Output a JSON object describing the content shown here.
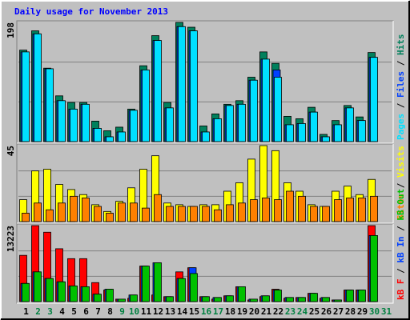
{
  "title": "Daily usage for November 2013",
  "chart_data": [
    {
      "type": "bar",
      "ylim": [
        0,
        198
      ],
      "yticks": [
        198
      ],
      "legend_separator": " / ",
      "legend_reversed": true,
      "categories": [
        "1",
        "2",
        "3",
        "4",
        "5",
        "6",
        "7",
        "8",
        "9",
        "10",
        "11",
        "12",
        "13",
        "14",
        "15",
        "16",
        "17",
        "18",
        "19",
        "20",
        "21",
        "22",
        "23",
        "24",
        "25",
        "26",
        "27",
        "28",
        "29",
        "30",
        "31"
      ],
      "category_colors": [
        "#000000",
        "#008040",
        "#008040",
        "#000000",
        "#000000",
        "#000000",
        "#000000",
        "#000000",
        "#008040",
        "#008040",
        "#000000",
        "#000000",
        "#000000",
        "#000000",
        "#000000",
        "#008040",
        "#008040",
        "#000000",
        "#000000",
        "#000000",
        "#000000",
        "#000000",
        "#008040",
        "#008040",
        "#000000",
        "#000000",
        "#000000",
        "#000000",
        "#000000",
        "#008040",
        "#008040"
      ],
      "series": [
        {
          "name": "Hits",
          "color": "#00805c",
          "values": [
            152,
            184,
            122,
            76,
            65,
            65,
            34,
            18,
            24,
            54,
            126,
            176,
            65,
            198,
            190,
            26,
            46,
            62,
            68,
            107,
            149,
            130,
            42,
            38,
            57,
            12,
            35,
            60,
            41,
            148,
            null
          ]
        },
        {
          "name": "Files",
          "color": "#0040ff",
          "values": [
            149,
            179,
            121,
            68,
            54,
            62,
            22,
            8,
            16,
            52,
            119,
            168,
            56,
            191,
            184,
            16,
            38,
            60,
            62,
            102,
            137,
            119,
            28,
            30,
            49,
            8,
            28,
            56,
            35,
            140,
            null
          ]
        },
        {
          "name": "Pages",
          "color": "#00e0ff",
          "values": [
            149,
            179,
            121,
            68,
            54,
            62,
            22,
            8,
            16,
            52,
            119,
            168,
            56,
            191,
            184,
            16,
            38,
            60,
            62,
            102,
            137,
            107,
            28,
            30,
            49,
            8,
            28,
            56,
            35,
            140,
            null
          ]
        }
      ]
    },
    {
      "type": "bar",
      "ylim": [
        0,
        45
      ],
      "yticks": [
        45
      ],
      "legend_separator": " / ",
      "legend_reversed": true,
      "series": [
        {
          "name": "Visits",
          "color": "#ffff00",
          "values": [
            13,
            30,
            31,
            22,
            19,
            16,
            10,
            6,
            12,
            20,
            31,
            39,
            11,
            10,
            9,
            10,
            10,
            18,
            23,
            37,
            45,
            42,
            23,
            18,
            10,
            9,
            18,
            21,
            16,
            25,
            null
          ]
        },
        {
          "name": "Sites",
          "color": "#ff8000",
          "values": [
            5,
            11,
            7,
            11,
            15,
            14,
            9,
            5,
            11,
            11,
            8,
            16,
            9,
            9,
            9,
            9,
            7,
            10,
            11,
            13,
            14,
            13,
            18,
            15,
            9,
            9,
            13,
            14,
            14,
            15,
            null
          ]
        }
      ]
    },
    {
      "type": "bar",
      "ylim": [
        0,
        13223
      ],
      "yticks": [
        13223
      ],
      "legend_separator": " / ",
      "legend_reversed": false,
      "series": [
        {
          "name": "kB F",
          "color": "#ff0000",
          "values": [
            8049,
            13223,
            12073,
            9199,
            7474,
            7474,
            3306,
            2012,
            431,
            575,
            6180,
            1150,
            862,
            5174,
            5893,
            862,
            431,
            1006,
            2587,
            287,
            862,
            2156,
            575,
            719,
            1437,
            575,
            287,
            2012,
            2012,
            13223,
            null
          ]
        },
        {
          "name": "kB In",
          "color": "#0040ff",
          "values": [
            3162,
            5174,
            4024,
            3449,
            2731,
            2587,
            1294,
            2156,
            431,
            1150,
            6180,
            6755,
            862,
            4024,
            5893,
            862,
            719,
            1006,
            2587,
            431,
            1006,
            2012,
            719,
            719,
            1437,
            719,
            287,
            2012,
            2012,
            11497,
            null
          ]
        },
        {
          "name": "kB Out",
          "color": "#00c000",
          "values": [
            3162,
            5174,
            4024,
            3449,
            2731,
            2587,
            1294,
            2156,
            431,
            1150,
            6180,
            6755,
            862,
            4024,
            4887,
            862,
            719,
            1006,
            2587,
            431,
            1006,
            2012,
            719,
            719,
            1437,
            719,
            287,
            2012,
            2012,
            11497,
            null
          ]
        }
      ]
    }
  ]
}
